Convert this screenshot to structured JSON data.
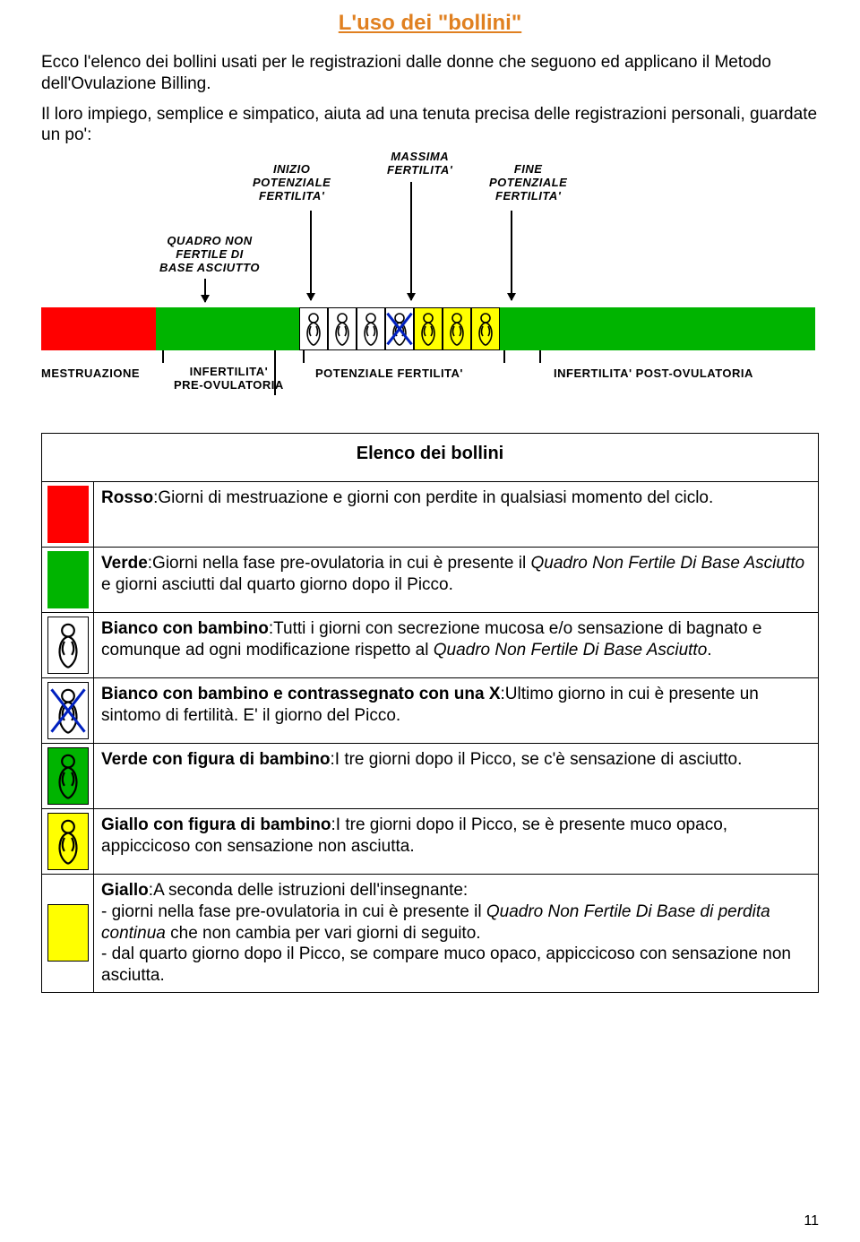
{
  "title": "L'uso dei \"bollini\"",
  "intro1": "Ecco l'elenco dei bollini usati per le registrazioni dalle donne che seguono ed applicano il Metodo dell'Ovulazione Billing.",
  "intro2": "Il loro impiego, semplice e simpatico, aiuta ad una tenuta precisa delle registrazioni personali, guardate un po':",
  "chart": {
    "labels": {
      "inizio": "INIZIO\nPOTENZIALE\nFERTILITA'",
      "massima": "MASSIMA\nFERTILITA'",
      "fine": "FINE\nPOTENZIALE\nFERTILITA'",
      "quadro": "QUADRO NON\nFERTILE DI\nBASE ASCIUTTO",
      "mestruazione": "MESTRUAZIONE",
      "infertilita_pre": "INFERTILITA'\nPRE-OVULATORIA",
      "potenziale_fert": "POTENZIALE FERTILITA'",
      "infertilita_post": "INFERTILITA' POST-OVULATORIA"
    }
  },
  "table": {
    "header": "Elenco dei bollini",
    "rows": [
      {
        "kind": "red",
        "html": "<span class='bold'>Rosso</span>:Giorni di mestruazione e giorni con perdite in qualsiasi momento del ciclo."
      },
      {
        "kind": "green",
        "html": "<span class='bold'>Verde</span>:Giorni nella fase pre-ovulatoria in cui è presente il <span class='italic'>Quadro Non Fertile Di Base Asciutto</span> e giorni asciutti dal quarto giorno dopo il Picco."
      },
      {
        "kind": "baby_white",
        "html": "<span class='bold'>Bianco con bambino</span>:Tutti i giorni con secrezione mucosa e/o sensazione di bagnato e comunque ad ogni modificazione rispetto al <span class='italic'>Quadro Non Fertile Di Base Asciutto</span>."
      },
      {
        "kind": "baby_white_x",
        "html": "<span class='bold'>Bianco con bambino e contrassegnato con una X</span>:Ultimo giorno in cui è presente un sintomo di fertilità. E' il giorno del Picco."
      },
      {
        "kind": "baby_green",
        "html": "<span class='bold'>Verde con figura di bambino</span>:I tre giorni dopo il Picco, se c'è sensazione di asciutto."
      },
      {
        "kind": "baby_yellow",
        "html": "<span class='bold'>Giallo con figura di bambino</span>:I tre giorni dopo il Picco, se è presente muco opaco, appiccicoso con sensazione non asciutta."
      },
      {
        "kind": "yellow",
        "html": "<span class='bold'>Giallo</span>:A seconda delle istruzioni dell'insegnante:<br>- giorni nella fase pre-ovulatoria in cui è presente il <span class='italic'>Quadro Non Fertile Di Base di perdita continua</span> che non cambia per vari giorni di seguito.<br>- dal quarto giorno dopo il Picco, se compare muco opaco, appiccicoso con sensazione non asciutta."
      }
    ]
  },
  "colors": {
    "red": "#ff0000",
    "green": "#00b400",
    "yellow": "#ffff00",
    "blue": "#0020c0",
    "white": "#ffffff"
  },
  "page_number": "11"
}
